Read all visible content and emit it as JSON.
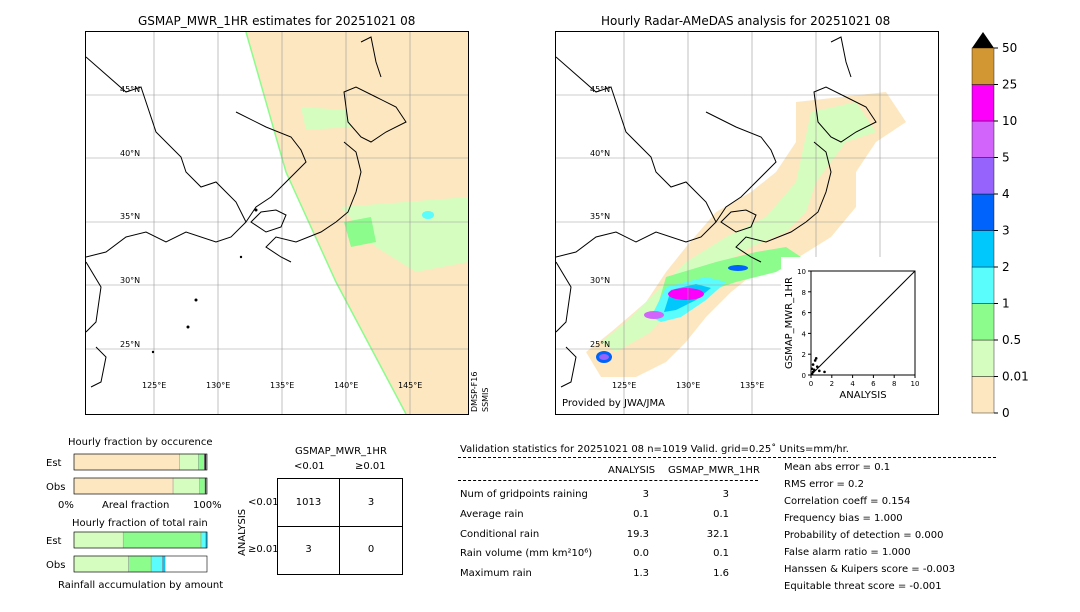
{
  "left_map": {
    "title": "GSMAP_MWR_1HR estimates for 20251021 08",
    "lat_labels": [
      "45°N",
      "40°N",
      "35°N",
      "30°N",
      "25°N"
    ],
    "lon_labels": [
      "125°E",
      "130°E",
      "135°E",
      "140°E",
      "145°E"
    ],
    "sensor_label_1": "DMSP-F16",
    "sensor_label_2": "SSMIS"
  },
  "right_map": {
    "title": "Hourly Radar-AMeDAS analysis for 20251021 08",
    "lat_labels": [
      "45°N",
      "40°N",
      "35°N",
      "30°N",
      "25°N"
    ],
    "lon_labels": [
      "125°E",
      "130°E",
      "135°E"
    ],
    "credit": "Provided by JWA/JMA"
  },
  "colorbar": {
    "levels": [
      "0",
      "0.01",
      "0.5",
      "1",
      "2",
      "3",
      "4",
      "5",
      "10",
      "25",
      "50"
    ],
    "colors": [
      "#fde7c0",
      "#d6fdc0",
      "#8cfc8c",
      "#5afcfc",
      "#00c8fc",
      "#0064fc",
      "#9664fc",
      "#d264fc",
      "#fc00fc",
      "#d29632"
    ]
  },
  "chart_data": [
    {
      "type": "scatter",
      "title": "",
      "xlabel": "ANALYSIS",
      "ylabel": "GSMAP_MWR_1HR",
      "xlim": [
        0,
        10
      ],
      "ylim": [
        0,
        10
      ],
      "x_ticks": [
        "0",
        "2",
        "4",
        "6",
        "8",
        "10"
      ],
      "y_ticks": [
        "0",
        "2",
        "4",
        "6",
        "8",
        "10"
      ],
      "diagonal": true,
      "points": [
        [
          0.1,
          0.1
        ],
        [
          0.2,
          0.3
        ],
        [
          0.3,
          0.5
        ],
        [
          0.2,
          1.0
        ],
        [
          0.4,
          1.4
        ],
        [
          0.5,
          1.6
        ],
        [
          0.8,
          0.4
        ],
        [
          1.3,
          0.3
        ],
        [
          0.6,
          0.8
        ],
        [
          0.1,
          0.6
        ]
      ]
    },
    {
      "type": "bar",
      "title": "Hourly fraction by occurence",
      "orientation": "horizontal-stacked",
      "categories": [
        "Est",
        "Obs"
      ],
      "x_ticks": [
        "0%",
        "100%"
      ],
      "xlabel": "Areal fraction",
      "series_colors": [
        "#fde7c0",
        "#d6fdc0",
        "#8cfc8c",
        "#202020"
      ],
      "rows": [
        {
          "label": "Est",
          "values": [
            0.795,
            0.14,
            0.045,
            0.015
          ]
        },
        {
          "label": "Obs",
          "values": [
            0.745,
            0.2,
            0.04,
            0.01
          ]
        }
      ]
    },
    {
      "type": "bar",
      "title": "Hourly fraction of total rain",
      "orientation": "horizontal-stacked",
      "categories": [
        "Est",
        "Obs"
      ],
      "xlabel": "Rainfall accumulation by amount",
      "series_colors": [
        "#d6fdc0",
        "#8cfc8c",
        "#5afcfc",
        "#00c8fc"
      ],
      "rows": [
        {
          "label": "Est",
          "values": [
            0.37,
            0.585,
            0.035,
            0.01
          ]
        },
        {
          "label": "Obs",
          "values": [
            0.41,
            0.17,
            0.085,
            0.02
          ]
        }
      ]
    }
  ],
  "contingency": {
    "title": "GSMAP_MWR_1HR",
    "col_labels": [
      "<0.01",
      "≥0.01"
    ],
    "row_axis_label": "ANALYSIS",
    "row_labels": [
      "<0.01",
      "≥0.01"
    ],
    "cells": [
      [
        "1013",
        "3"
      ],
      [
        "3",
        "0"
      ]
    ]
  },
  "validation": {
    "header": "Validation statistics for 20251021 08  n=1019 Valid. grid=0.25˚ Units=mm/hr.",
    "col_analysis": "ANALYSIS",
    "col_gsmap": "GSMAP_MWR_1HR",
    "rows": [
      {
        "label": "Num of gridpoints raining",
        "analysis": "3",
        "gsmap": "3"
      },
      {
        "label": "Average rain",
        "analysis": "0.1",
        "gsmap": "0.1"
      },
      {
        "label": "Conditional rain",
        "analysis": "19.3",
        "gsmap": "32.1"
      },
      {
        "label": "Rain volume (mm km²10⁶)",
        "analysis": "0.0",
        "gsmap": "0.1"
      },
      {
        "label": "Maximum rain",
        "analysis": "1.3",
        "gsmap": "1.6"
      }
    ],
    "scores": [
      "Mean abs error =    0.1",
      "RMS error =    0.2",
      "Correlation coeff =  0.154",
      "Frequency bias =  1.000",
      "Probability of detection =  0.000",
      "False alarm ratio =  1.000",
      "Hanssen & Kuipers score = -0.003",
      "Equitable threat score = -0.001"
    ]
  }
}
